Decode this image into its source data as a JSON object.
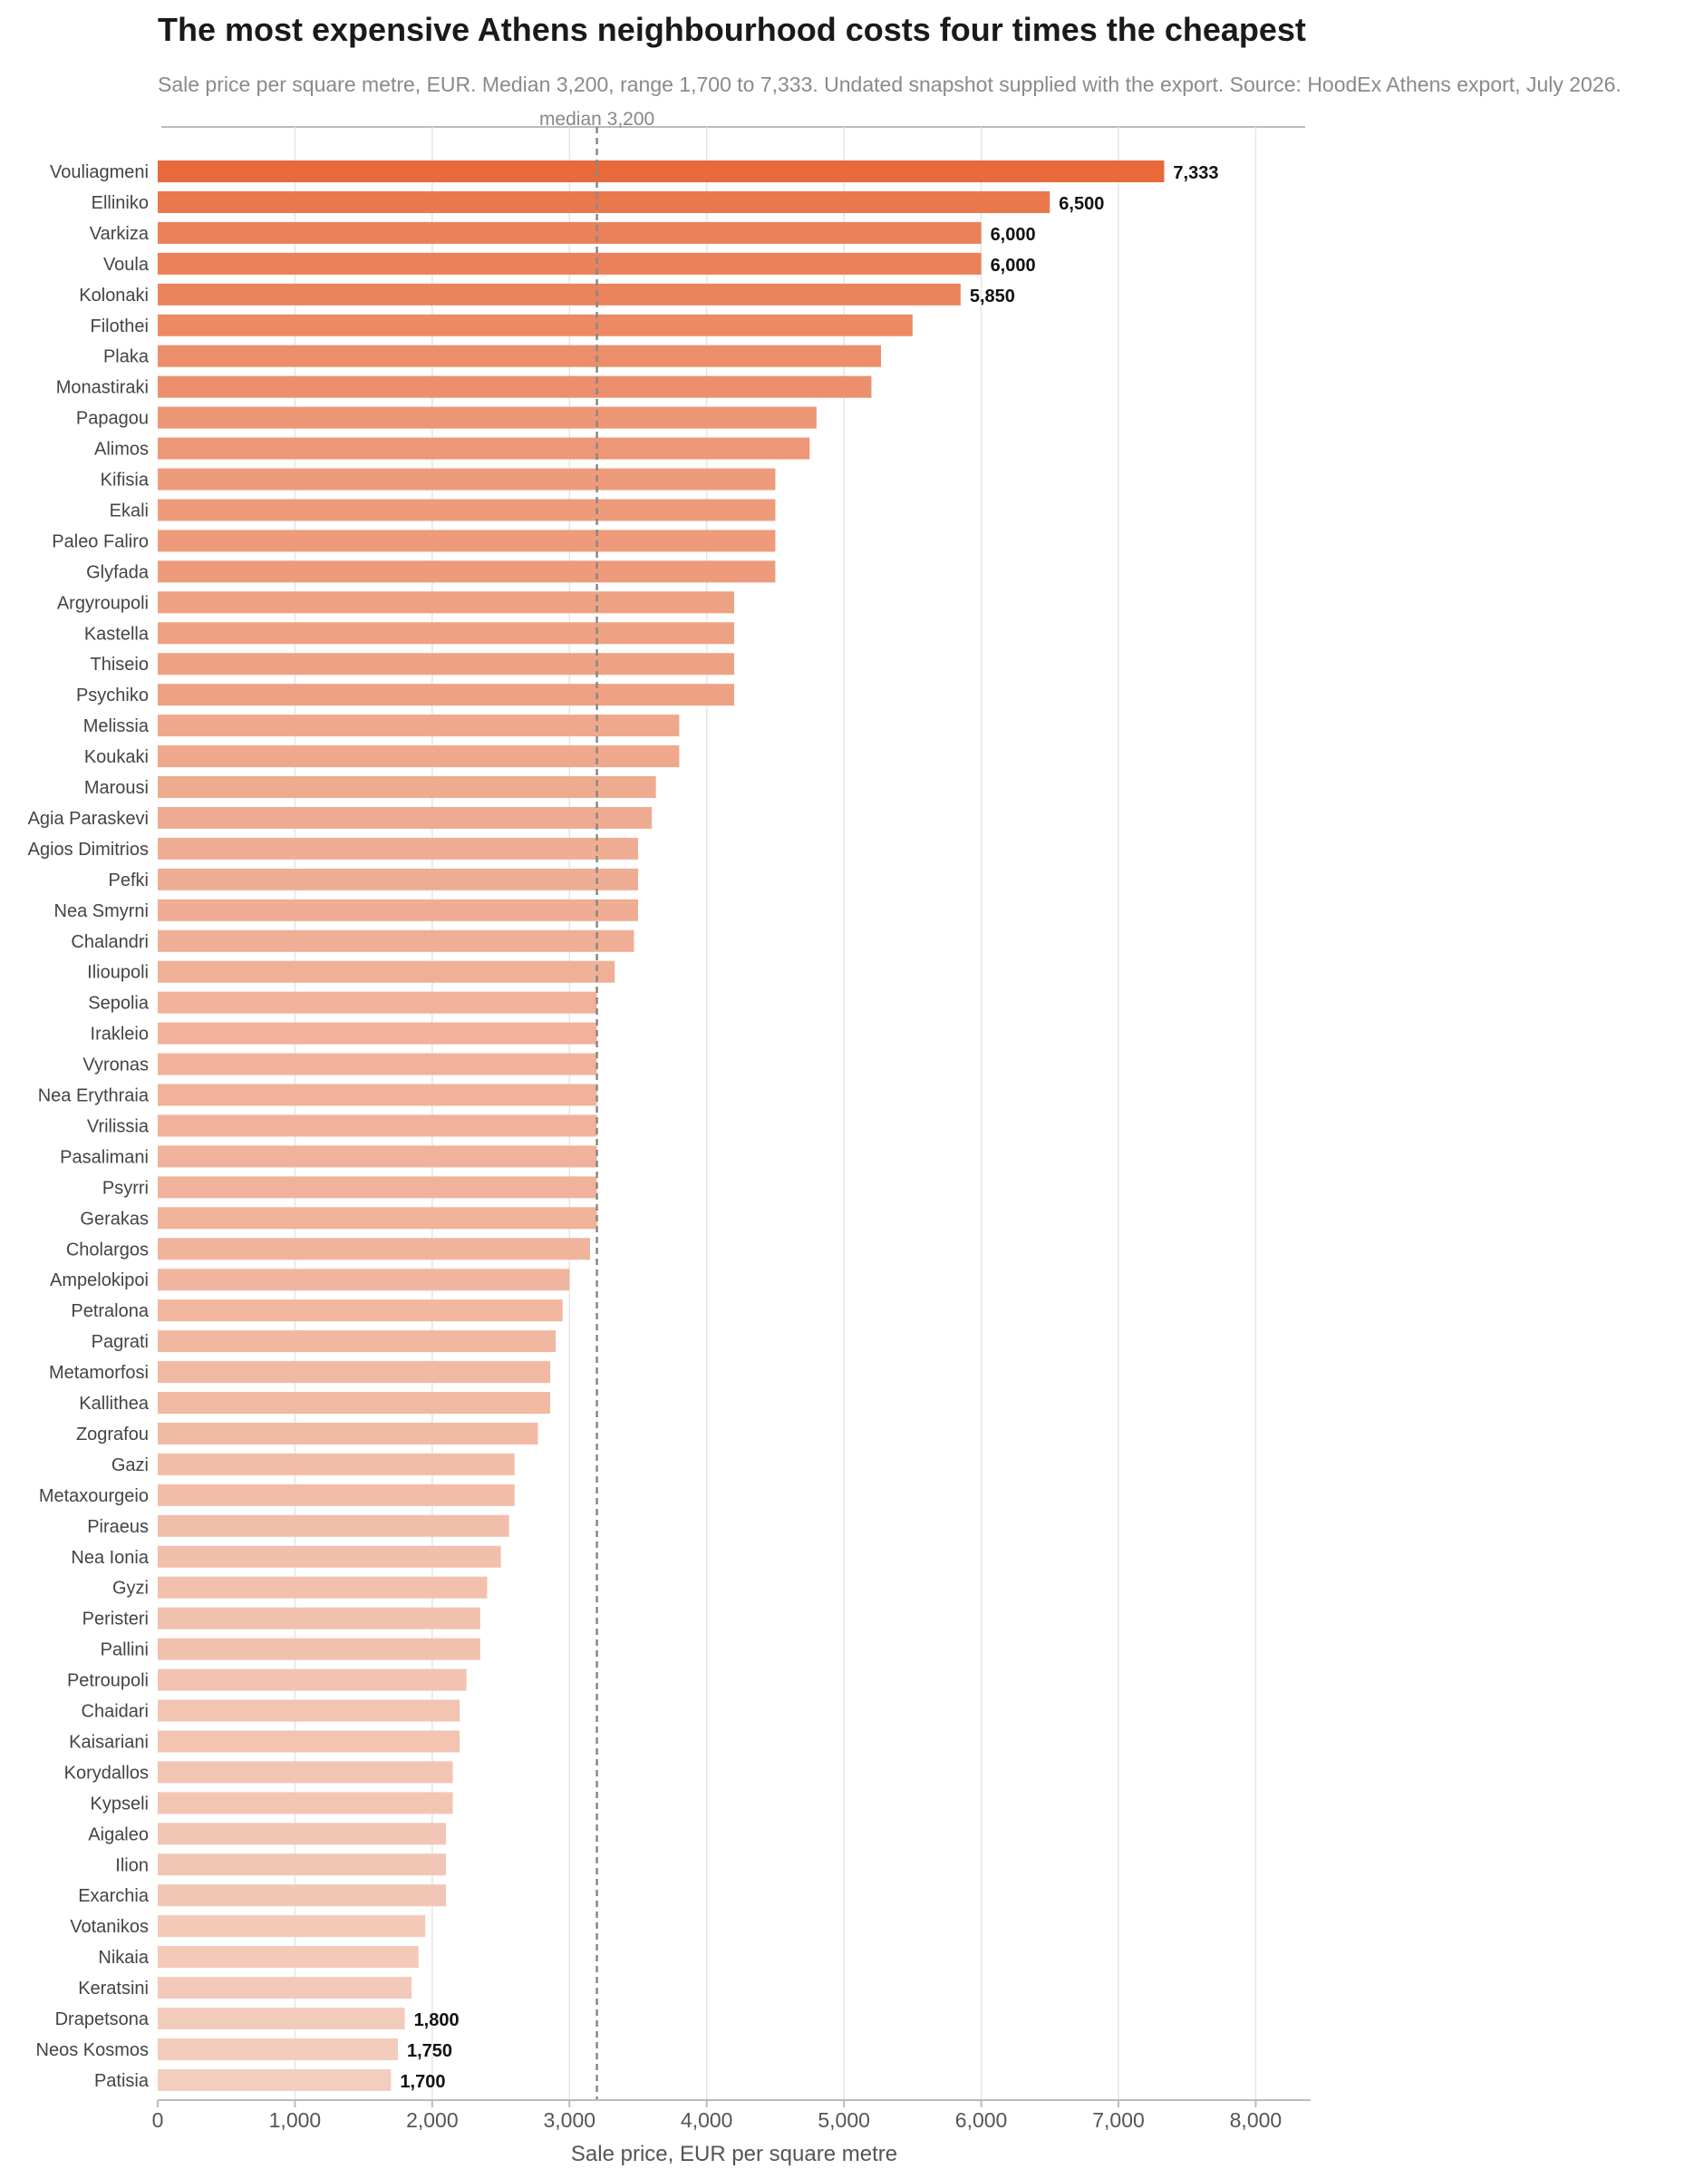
{
  "chart_data": {
    "type": "bar",
    "orientation": "horizontal",
    "title": "The most expensive Athens neighbourhood costs four times the cheapest",
    "subtitle": "Sale price per square metre, EUR. Median 3,200, range 1,700 to 7,333. Undated snapshot supplied with the export. Source: HoodEx Athens export, July 2026.",
    "xlabel": "Sale price, EUR per square metre",
    "xlim": [
      0,
      8400
    ],
    "xticks": [
      0,
      1000,
      2000,
      3000,
      4000,
      5000,
      6000,
      7000,
      8000
    ],
    "xtick_labels": [
      "0",
      "1,000",
      "2,000",
      "3,000",
      "4,000",
      "5,000",
      "6,000",
      "7,000",
      "8,000"
    ],
    "grid": "vertical",
    "reference_line": {
      "value": 3200,
      "label": "median 3,200",
      "style": "dashed"
    },
    "colors": {
      "high": "#e8693a",
      "low": "#f3cdbd",
      "median_line": "#888888",
      "grid": "#e6e6e6",
      "axis": "#bbbbbb"
    },
    "categories": [
      "Vouliagmeni",
      "Elliniko",
      "Varkiza",
      "Voula",
      "Kolonaki",
      "Filothei",
      "Plaka",
      "Monastiraki",
      "Papagou",
      "Alimos",
      "Kifisia",
      "Ekali",
      "Paleo Faliro",
      "Glyfada",
      "Argyroupoli",
      "Kastella",
      "Thiseio",
      "Psychiko",
      "Melissia",
      "Koukaki",
      "Marousi",
      "Agia Paraskevi",
      "Agios Dimitrios",
      "Pefki",
      "Nea Smyrni",
      "Chalandri",
      "Ilioupoli",
      "Sepolia",
      "Irakleio",
      "Vyronas",
      "Nea Erythraia",
      "Vrilissia",
      "Pasalimani",
      "Psyrri",
      "Gerakas",
      "Cholargos",
      "Ampelokipoi",
      "Petralona",
      "Pagrati",
      "Metamorfosi",
      "Kallithea",
      "Zografou",
      "Gazi",
      "Metaxourgeio",
      "Piraeus",
      "Nea Ionia",
      "Gyzi",
      "Peristeri",
      "Pallini",
      "Petroupoli",
      "Chaidari",
      "Kaisariani",
      "Korydallos",
      "Kypseli",
      "Aigaleo",
      "Ilion",
      "Exarchia",
      "Votanikos",
      "Nikaia",
      "Keratsini",
      "Drapetsona",
      "Neos Kosmos",
      "Patisia"
    ],
    "values": [
      7333,
      6500,
      6000,
      6000,
      5850,
      5500,
      5270,
      5200,
      4800,
      4750,
      4500,
      4500,
      4500,
      4500,
      4200,
      4200,
      4200,
      4200,
      3800,
      3800,
      3630,
      3600,
      3500,
      3500,
      3500,
      3470,
      3330,
      3200,
      3200,
      3200,
      3200,
      3200,
      3200,
      3200,
      3200,
      3150,
      3000,
      2950,
      2900,
      2860,
      2860,
      2770,
      2600,
      2600,
      2560,
      2500,
      2400,
      2350,
      2350,
      2250,
      2200,
      2200,
      2150,
      2150,
      2100,
      2100,
      2100,
      1950,
      1900,
      1850,
      1800,
      1750,
      1700
    ],
    "data_labels": [
      {
        "index": 0,
        "text": "7,333"
      },
      {
        "index": 1,
        "text": "6,500"
      },
      {
        "index": 2,
        "text": "6,000"
      },
      {
        "index": 3,
        "text": "6,000"
      },
      {
        "index": 4,
        "text": "5,850"
      },
      {
        "index": 60,
        "text": "1,800"
      },
      {
        "index": 61,
        "text": "1,750"
      },
      {
        "index": 62,
        "text": "1,700"
      }
    ]
  }
}
